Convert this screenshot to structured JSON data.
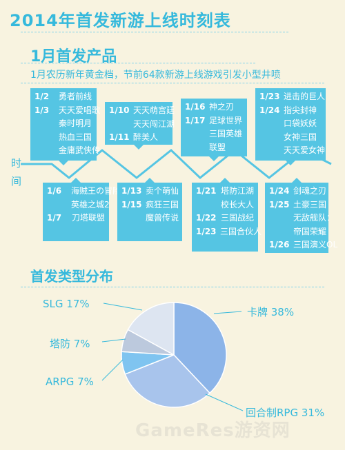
{
  "title": "2014年首发新游上线时刻表",
  "section1_title": "1月首发产品",
  "section1_desc": "1月农历新年黄金档，节前64款新游上线游戏引发小型井喷",
  "axis_label": [
    "时",
    "间"
  ],
  "timeline_top": [
    {
      "rows": [
        [
          "1/2",
          "勇者前线"
        ],
        [
          "1/3",
          "天天爱唱歌"
        ],
        [
          "",
          "秦时明月"
        ],
        [
          "",
          "热血三国"
        ],
        [
          "",
          "金庸武侠传"
        ]
      ]
    },
    {
      "rows": [
        [
          "1/10",
          "天天萌宫廷"
        ],
        [
          "",
          "天天闯江湖"
        ],
        [
          "1/11",
          "醉美人"
        ]
      ]
    },
    {
      "rows": [
        [
          "1/16",
          "神之刃"
        ],
        [
          "1/17",
          "足球世界"
        ],
        [
          "",
          "三国英雄"
        ],
        [
          "",
          "联盟"
        ]
      ]
    },
    {
      "rows": [
        [
          "1/23",
          "进击的巨人"
        ],
        [
          "1/24",
          "指尖封神"
        ],
        [
          "",
          "口袋妖妖"
        ],
        [
          "",
          "女神三国"
        ],
        [
          "",
          "天天爱女神"
        ]
      ]
    }
  ],
  "timeline_bottom": [
    {
      "rows": [
        [
          "1/6",
          "海贼王の冒险"
        ],
        [
          "",
          "英雄之城2"
        ],
        [
          "1/7",
          "刀塔联盟"
        ]
      ]
    },
    {
      "rows": [
        [
          "1/13",
          "卖个萌仙"
        ],
        [
          "1/15",
          "疯狂三国"
        ],
        [
          "",
          "魔兽传说"
        ]
      ]
    },
    {
      "rows": [
        [
          "1/21",
          "塔防江湖"
        ],
        [
          "",
          "校长大人"
        ],
        [
          "1/22",
          "三国战纪"
        ],
        [
          "1/23",
          "三国合伙人"
        ]
      ]
    },
    {
      "rows": [
        [
          "1/24",
          "剑魂之刃"
        ],
        [
          "1/25",
          "土豪三国"
        ],
        [
          "",
          "无敌舰队："
        ],
        [
          "",
          "帝国荣耀"
        ],
        [
          "1/26",
          "三国演义OL"
        ]
      ]
    }
  ],
  "section2_title": "首发类型分布",
  "watermark": "GameRes游资网",
  "colors": {
    "accent": "#36b9dc",
    "box": "#55c5e3",
    "background": "#f8f3e0"
  },
  "chart_data": {
    "type": "pie",
    "title": "首发类型分布",
    "slices": [
      {
        "label": "卡牌",
        "value": 38,
        "display": "卡牌 38%",
        "color": "#8cb4e8"
      },
      {
        "label": "回合制RPG",
        "value": 31,
        "display": "回合制RPG 31%",
        "color": "#a8c4ec"
      },
      {
        "label": "ARPG",
        "value": 7,
        "display": "ARPG   7%",
        "color": "#7fc4f0"
      },
      {
        "label": "塔防",
        "value": 7,
        "display": "塔防   7%",
        "color": "#bcc9dd"
      },
      {
        "label": "SLG",
        "value": 17,
        "display": "SLG   17%",
        "color": "#dde5f1"
      }
    ]
  }
}
